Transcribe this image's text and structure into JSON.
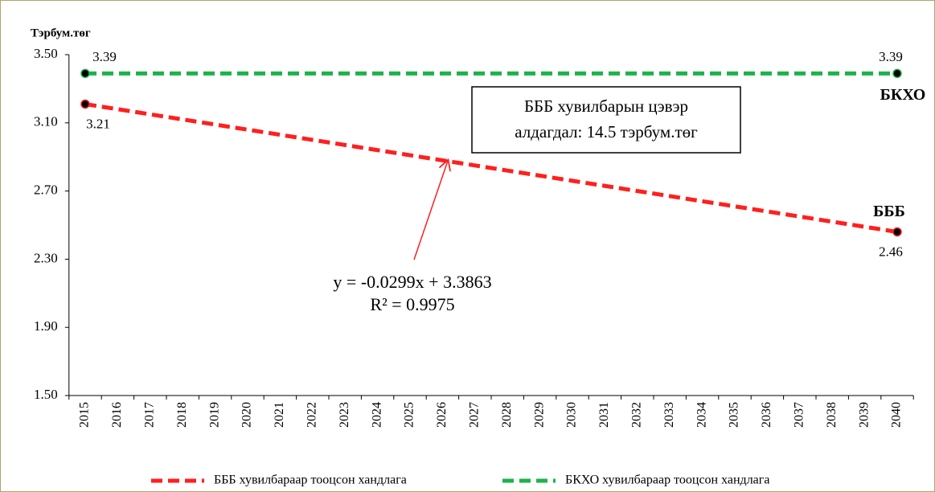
{
  "chart_data": {
    "type": "line",
    "y_label": "Тэрбум.төг",
    "categories": [
      "2015",
      "2016",
      "2017",
      "2018",
      "2019",
      "2020",
      "2021",
      "2022",
      "2023",
      "2024",
      "2025",
      "2026",
      "2027",
      "2028",
      "2029",
      "2030",
      "2031",
      "2032",
      "2033",
      "2034",
      "2035",
      "2036",
      "2037",
      "2038",
      "2039",
      "2040"
    ],
    "series": [
      {
        "name": "БББ хувилбараар тооцсон хандлага",
        "color": "#ff1f1f",
        "end_label": "БББ",
        "values": [
          3.21,
          3.18,
          3.15,
          3.12,
          3.09,
          3.06,
          3.03,
          3.0,
          2.97,
          2.94,
          2.91,
          2.88,
          2.85,
          2.82,
          2.79,
          2.76,
          2.73,
          2.7,
          2.67,
          2.64,
          2.61,
          2.58,
          2.55,
          2.52,
          2.49,
          2.46
        ],
        "value_labels": [
          "3.21",
          null,
          null,
          null,
          null,
          null,
          null,
          null,
          null,
          null,
          null,
          null,
          null,
          null,
          null,
          null,
          null,
          null,
          null,
          null,
          null,
          null,
          null,
          null,
          null,
          "2.46"
        ]
      },
      {
        "name": "БКХО хувилбараар тооцсон хандлага",
        "color": "#1db34a",
        "end_label": "БКХО",
        "values": [
          3.39,
          3.39,
          3.39,
          3.39,
          3.39,
          3.39,
          3.39,
          3.39,
          3.39,
          3.39,
          3.39,
          3.39,
          3.39,
          3.39,
          3.39,
          3.39,
          3.39,
          3.39,
          3.39,
          3.39,
          3.39,
          3.39,
          3.39,
          3.39,
          3.39,
          3.39
        ],
        "value_labels": [
          "3.39",
          null,
          null,
          null,
          null,
          null,
          null,
          null,
          null,
          null,
          null,
          null,
          null,
          null,
          null,
          null,
          null,
          null,
          null,
          null,
          null,
          null,
          null,
          null,
          null,
          "3.39"
        ]
      }
    ],
    "ylim": [
      1.5,
      3.5
    ],
    "yticks": [
      {
        "value": 1.5,
        "label": "1.50"
      },
      {
        "value": 1.9,
        "label": "1.90"
      },
      {
        "value": 2.3,
        "label": "2.30"
      },
      {
        "value": 2.7,
        "label": "2.70"
      },
      {
        "value": 3.1,
        "label": "3.10"
      },
      {
        "value": 3.5,
        "label": "3.50"
      }
    ],
    "annotation_box": [
      "БББ хувилбарын цэвэр",
      "алдагдал: 14.5 тэрбум.төг"
    ],
    "trendline": [
      "y = -0.0299x + 3.3863",
      "R² = 0.9975"
    ],
    "legend": "bottom"
  }
}
